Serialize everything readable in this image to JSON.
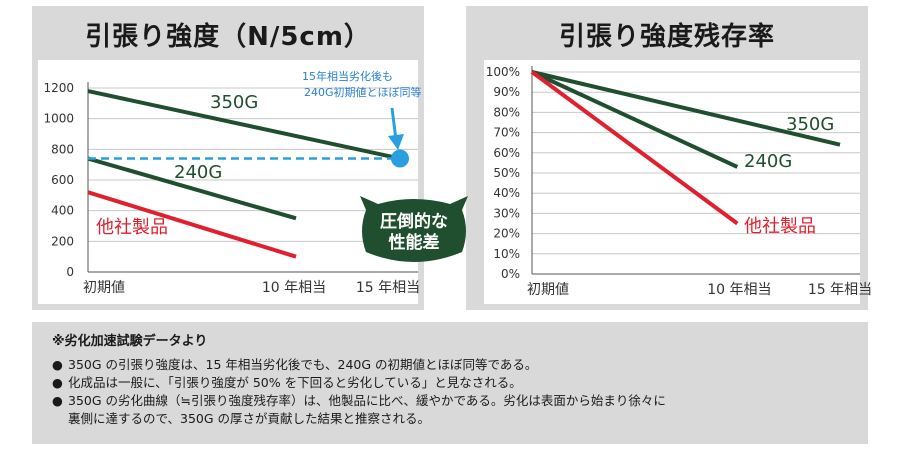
{
  "left_chart": {
    "title": "引張り強度（N/5cm）",
    "annotation": [
      "15年相当劣化後も",
      "240G初期値とほぼ同等"
    ]
  },
  "right_chart": {
    "title": "引張り強度残存率"
  },
  "badge": [
    "圧倒的な",
    "性能差"
  ],
  "note": {
    "heading": "※劣化加速試験データより",
    "bullet": "●",
    "items": [
      "350G の引張り強度は、15 年相当劣化後でも、240G の初期値とほぼ同等である。",
      "化成品は一般に、「引張り強度が 50% を下回ると劣化している」と見なされる。",
      "350G の劣化曲線（≒引張り強度残存率）は、他製品に比べ、緩やかである。劣化は表面から始まり徐々に",
      "裏側に達するので、350G の厚さが貢献した結果と推察される。"
    ]
  },
  "colors": {
    "s350": "#1f4f2e",
    "s240": "#1f4f2e",
    "other": "#e0202e",
    "ref": "#2a9fe0",
    "badge": "#1f4f2e"
  },
  "chart_data": [
    {
      "type": "line",
      "title": "引張り強度（N/5cm）",
      "categories": [
        "初期値",
        "10 年相当",
        "15 年相当"
      ],
      "x": [
        0,
        10,
        15
      ],
      "ylim": [
        0,
        1200
      ],
      "yticks": [
        0,
        200,
        400,
        600,
        800,
        1000,
        1200
      ],
      "grid": true,
      "series": [
        {
          "name": "350G",
          "x": [
            0,
            15
          ],
          "values": [
            1180,
            740
          ]
        },
        {
          "name": "240G",
          "x": [
            0,
            10
          ],
          "values": [
            740,
            350
          ]
        },
        {
          "name": "他社製品",
          "x": [
            0,
            10
          ],
          "values": [
            520,
            100
          ]
        }
      ],
      "reference_line": {
        "y": 740,
        "style": "dashed"
      }
    },
    {
      "type": "line",
      "title": "引張り強度残存率",
      "categories": [
        "初期値",
        "10 年相当",
        "15 年相当"
      ],
      "x": [
        0,
        10,
        15
      ],
      "ylim": [
        0,
        100
      ],
      "yticks": [
        "0%",
        "10%",
        "20%",
        "30%",
        "40%",
        "50%",
        "60%",
        "70%",
        "80%",
        "90%",
        "100%"
      ],
      "grid": true,
      "series": [
        {
          "name": "350G",
          "x": [
            0,
            15
          ],
          "values": [
            100,
            64
          ]
        },
        {
          "name": "240G",
          "x": [
            0,
            10
          ],
          "values": [
            100,
            53
          ]
        },
        {
          "name": "他社製品",
          "x": [
            0,
            10
          ],
          "values": [
            100,
            25
          ]
        }
      ]
    }
  ]
}
